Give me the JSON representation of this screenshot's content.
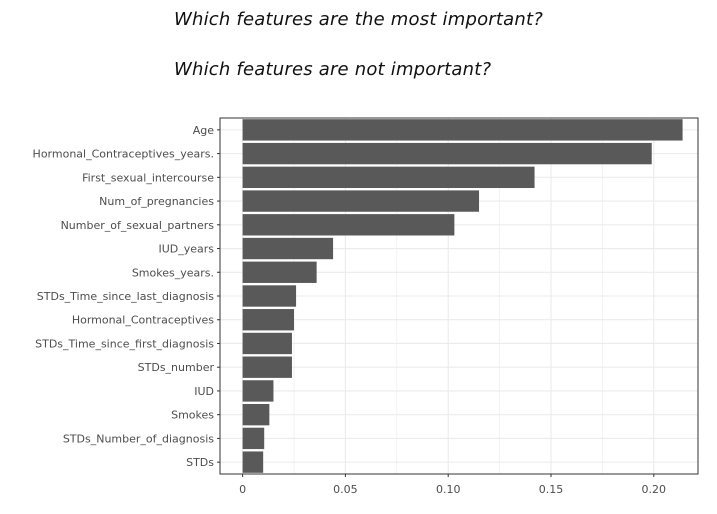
{
  "questions": {
    "q1": "Which features are the most important?",
    "q2": "Which features are not important?"
  },
  "chart_data": {
    "type": "bar",
    "orientation": "horizontal",
    "title": "",
    "xlabel": "",
    "ylabel": "",
    "categories": [
      "Age",
      "Hormonal_Contraceptives_years.",
      "First_sexual_intercourse",
      "Num_of_pregnancies",
      "Number_of_sexual_partners",
      "IUD_years",
      "Smokes_years.",
      "STDs_Time_since_last_diagnosis",
      "Hormonal_Contraceptives",
      "STDs_Time_since_first_diagnosis",
      "STDs_number",
      "IUD",
      "Smokes",
      "STDs_Number_of_diagnosis",
      "STDs"
    ],
    "values": [
      0.214,
      0.199,
      0.142,
      0.115,
      0.103,
      0.044,
      0.036,
      0.026,
      0.025,
      0.024,
      0.024,
      0.015,
      0.013,
      0.0105,
      0.01
    ],
    "xlim": [
      -0.011,
      0.2215
    ],
    "xticks": [
      0,
      0.05,
      0.1,
      0.15,
      0.2
    ],
    "xtick_labels": [
      "0",
      "0.05",
      "0.10",
      "0.15",
      "0.20"
    ],
    "grid": true,
    "legend": "none",
    "bar_color": "#595959",
    "grid_color": "#ebebeb",
    "panel_border_color": "#333333"
  }
}
